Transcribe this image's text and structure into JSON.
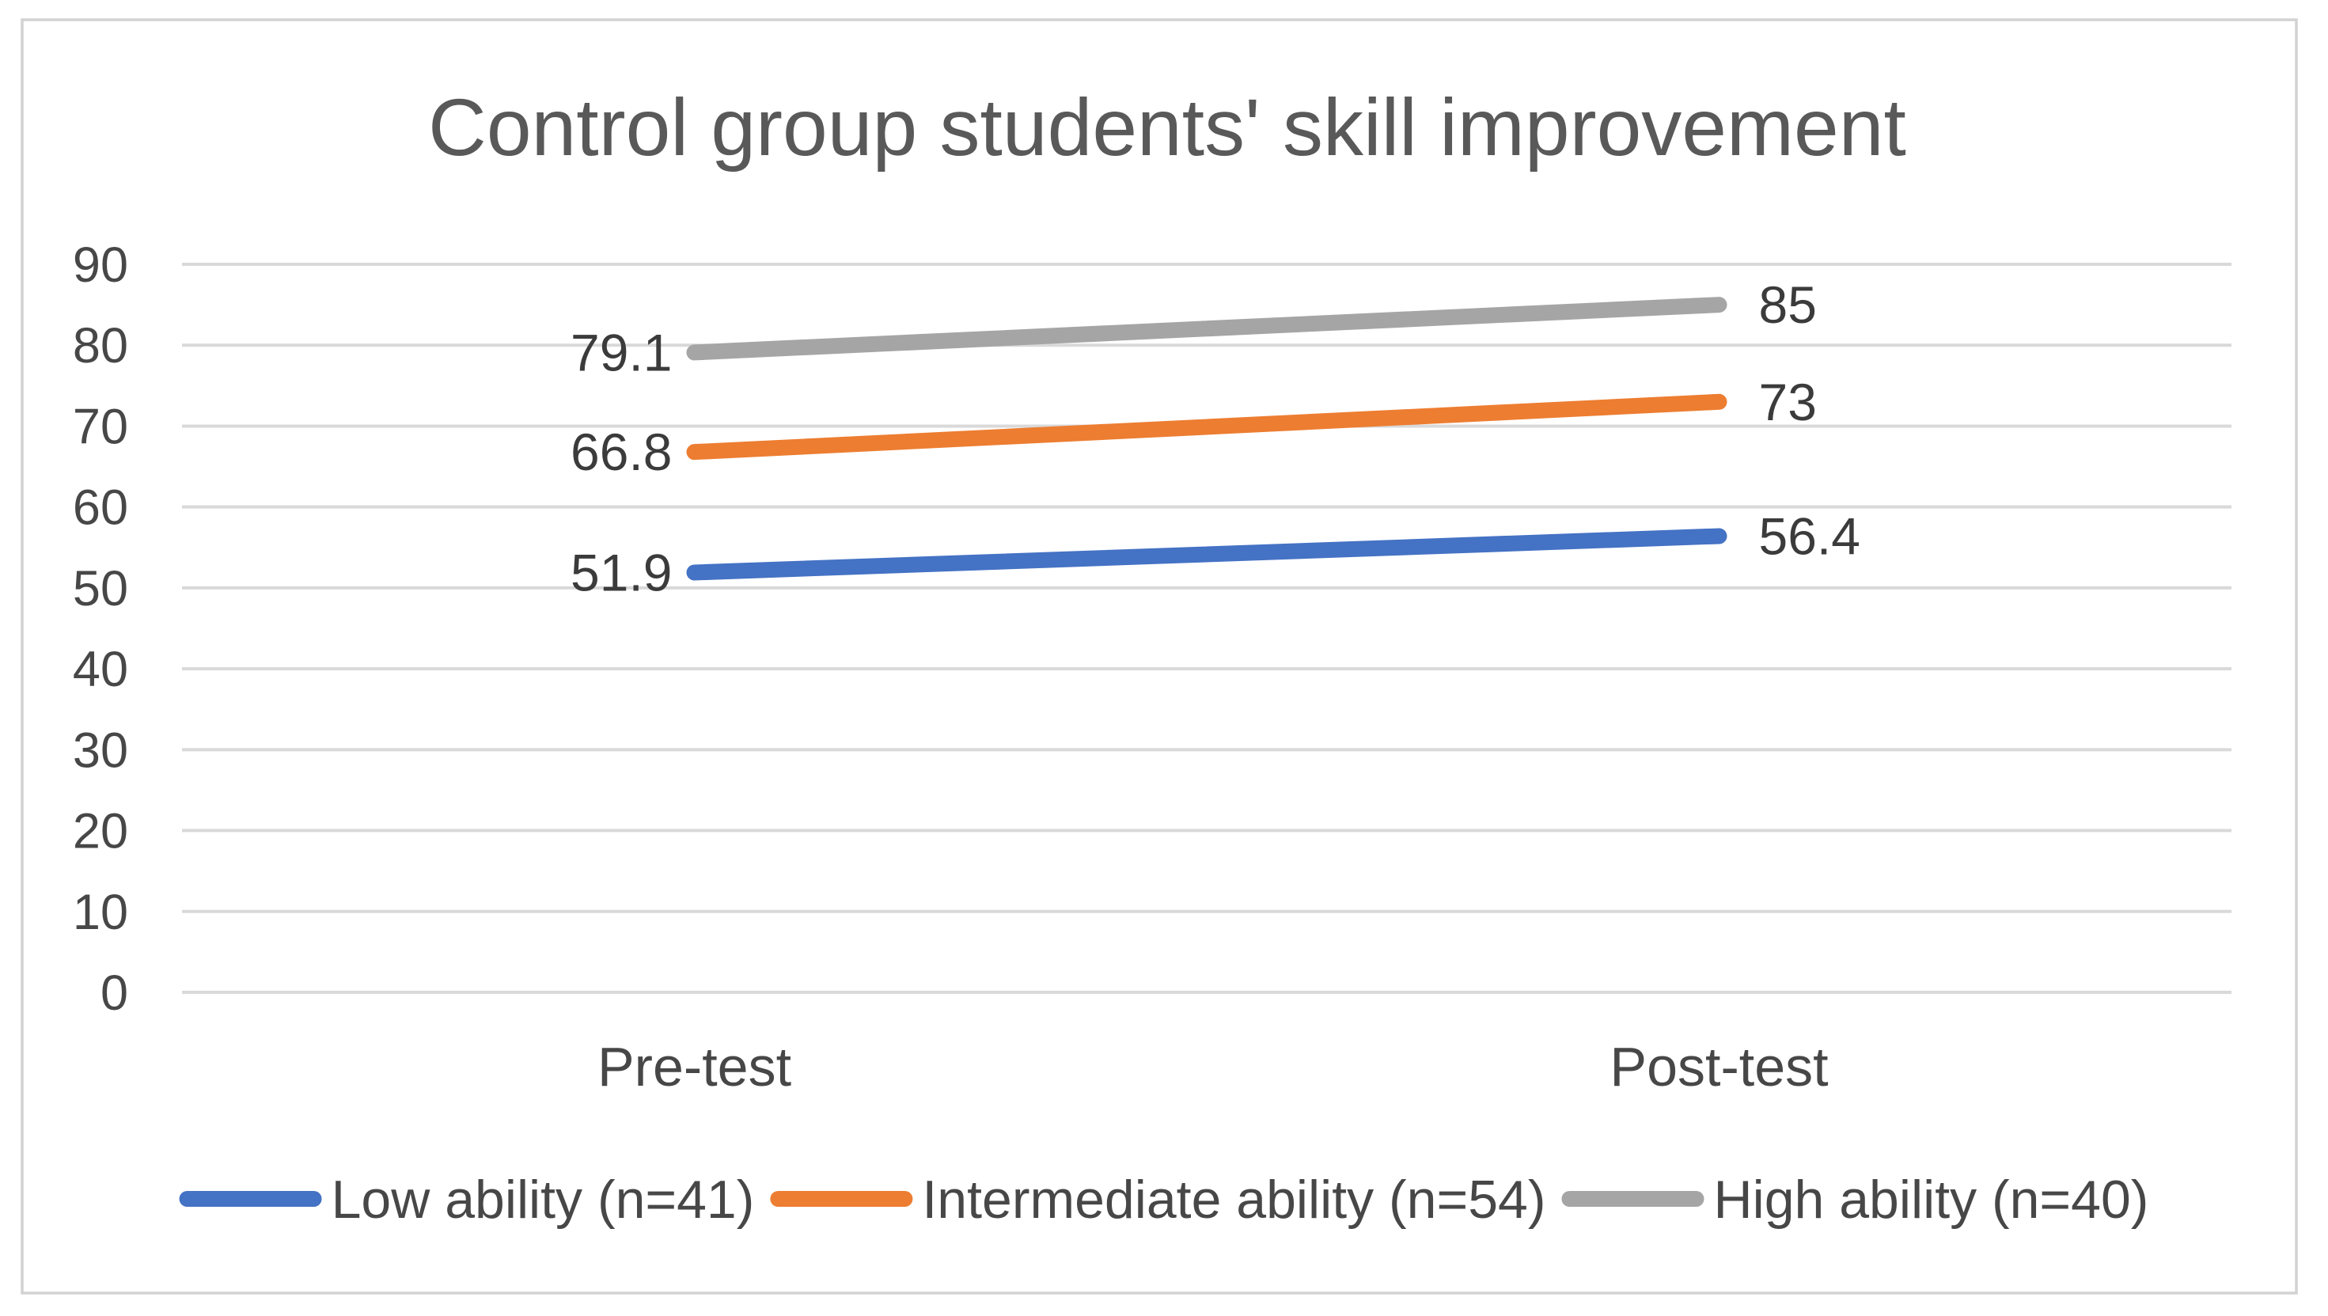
{
  "chart_data": {
    "type": "line",
    "title": "Control group students' skill improvement",
    "categories": [
      "Pre-test",
      "Post-test"
    ],
    "series": [
      {
        "name": "Low ability (n=41)",
        "color": "#4472C4",
        "values": [
          51.9,
          56.4
        ],
        "labels": [
          "51.9",
          "56.4"
        ]
      },
      {
        "name": "Intermediate ability (n=54)",
        "color": "#ED7D31",
        "values": [
          66.8,
          73
        ],
        "labels": [
          "66.8",
          "73"
        ]
      },
      {
        "name": "High ability (n=40)",
        "color": "#A5A5A5",
        "values": [
          79.1,
          85
        ],
        "labels": [
          "79.1",
          "85"
        ]
      }
    ],
    "yticks": [
      0,
      10,
      20,
      30,
      40,
      50,
      60,
      70,
      80,
      90
    ],
    "ylim": [
      0,
      90
    ],
    "xlabel": "",
    "ylabel": "",
    "grid": true,
    "legend_position": "bottom",
    "colors": {
      "title_text": "#595959",
      "axis_text": "#474747",
      "data_label_text": "#3B3B3B",
      "gridline": "#D9D9D9",
      "frame_border": "#D2D2D2",
      "background": "#FFFFFF"
    }
  }
}
